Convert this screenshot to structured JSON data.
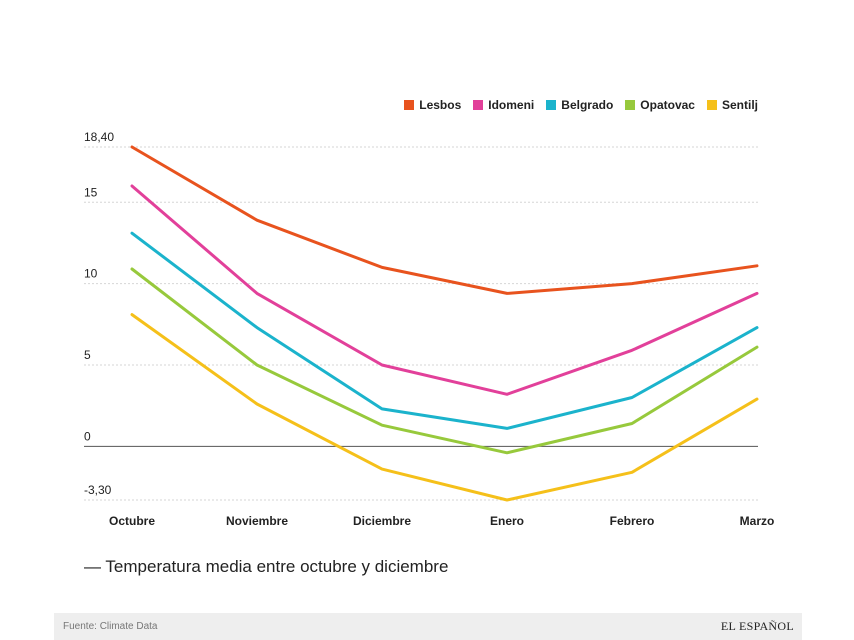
{
  "chart_data": {
    "type": "line",
    "categories": [
      "Octubre",
      "Noviembre",
      "Diciembre",
      "Enero",
      "Febrero",
      "Marzo"
    ],
    "series": [
      {
        "name": "Lesbos",
        "color": "#e8531e",
        "values": [
          18.4,
          13.9,
          11.0,
          9.4,
          10.0,
          11.1
        ]
      },
      {
        "name": "Idomeni",
        "color": "#e2409a",
        "values": [
          16.0,
          9.4,
          5.0,
          3.2,
          5.9,
          9.4
        ]
      },
      {
        "name": "Belgrado",
        "color": "#1bb3cc",
        "values": [
          13.1,
          7.3,
          2.3,
          1.1,
          3.0,
          7.3
        ]
      },
      {
        "name": "Opatovac",
        "color": "#97c93c",
        "values": [
          10.9,
          5.0,
          1.3,
          -0.4,
          1.4,
          6.1
        ]
      },
      {
        "name": "Sentilj",
        "color": "#f5c01a",
        "values": [
          8.1,
          2.6,
          -1.4,
          -3.3,
          -1.6,
          2.9
        ]
      }
    ],
    "yticks": [
      {
        "value": 18.4,
        "label": "18,40"
      },
      {
        "value": 15,
        "label": "15"
      },
      {
        "value": 10,
        "label": "10"
      },
      {
        "value": 5,
        "label": "5"
      },
      {
        "value": 0,
        "label": "0"
      },
      {
        "value": -3.3,
        "label": "-3,30"
      }
    ],
    "ylim": [
      -3.3,
      18.4
    ],
    "title": "Temperatura media entre octubre y diciembre",
    "xlabel": "",
    "ylabel": "",
    "legend_position": "top-right",
    "grid": true
  },
  "caption": "— Temperatura media entre octubre y diciembre",
  "footer": {
    "source": "Fuente: Climate Data",
    "brand": "EL ESPAÑOL"
  }
}
